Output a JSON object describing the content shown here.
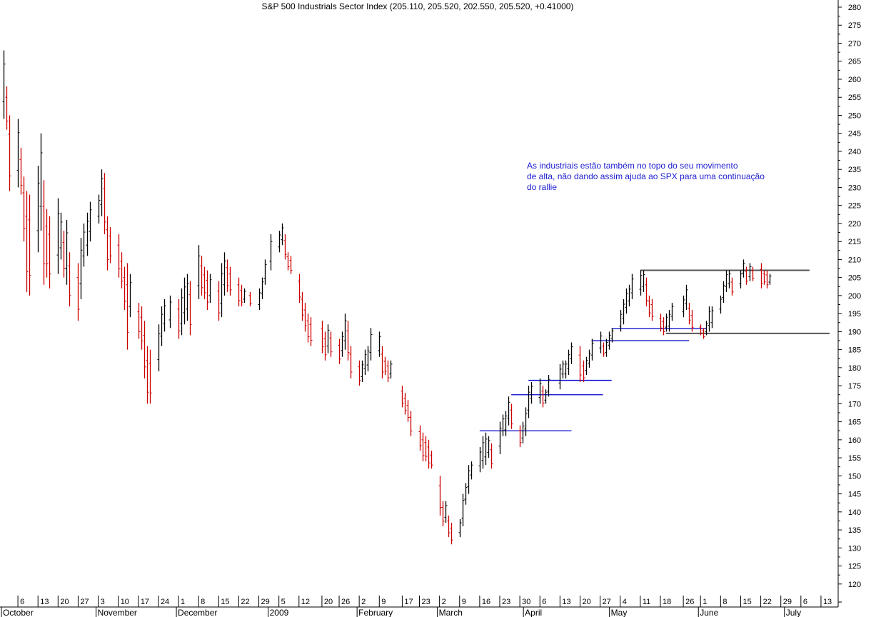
{
  "chart_data": {
    "type": "ohlc",
    "title": "S&P 500 Industrials Sector Index (205.110, 205.520, 202.550, 205.520, +0.41000)",
    "annotation": {
      "lines": [
        "As industriais estão também no topo do seu movimento",
        "de alta, não dando assim ajuda ao SPX para uma continuação",
        "do rallie"
      ],
      "color": "#1c1cd0"
    },
    "colors": {
      "up": "#000000",
      "down": "#cc0000",
      "trend_lines": "#0000cc",
      "range_lines": "#555555"
    },
    "y_axis": {
      "position": "right",
      "min": 115,
      "max": 280,
      "step": 5
    },
    "x_axis": {
      "start": "2008-10-03",
      "end": "2009-07-17",
      "week_labels": [
        {
          "d": "2008-10-06",
          "t": "6"
        },
        {
          "d": "2008-10-13",
          "t": "13"
        },
        {
          "d": "2008-10-20",
          "t": "20"
        },
        {
          "d": "2008-10-27",
          "t": "27"
        },
        {
          "d": "2008-11-03",
          "t": "3"
        },
        {
          "d": "2008-11-10",
          "t": "10"
        },
        {
          "d": "2008-11-17",
          "t": "17"
        },
        {
          "d": "2008-11-24",
          "t": "24"
        },
        {
          "d": "2008-12-01",
          "t": "1"
        },
        {
          "d": "2008-12-08",
          "t": "8"
        },
        {
          "d": "2008-12-15",
          "t": "15"
        },
        {
          "d": "2008-12-22",
          "t": "22"
        },
        {
          "d": "2008-12-29",
          "t": "29"
        },
        {
          "d": "2009-01-05",
          "t": "5"
        },
        {
          "d": "2009-01-12",
          "t": "12"
        },
        {
          "d": "2009-01-20",
          "t": "20"
        },
        {
          "d": "2009-01-26",
          "t": "26"
        },
        {
          "d": "2009-02-02",
          "t": "2"
        },
        {
          "d": "2009-02-09",
          "t": "9"
        },
        {
          "d": "2009-02-17",
          "t": "17"
        },
        {
          "d": "2009-02-23",
          "t": "23"
        },
        {
          "d": "2009-03-02",
          "t": "2"
        },
        {
          "d": "2009-03-09",
          "t": "9"
        },
        {
          "d": "2009-03-16",
          "t": "16"
        },
        {
          "d": "2009-03-23",
          "t": "23"
        },
        {
          "d": "2009-03-30",
          "t": "30"
        },
        {
          "d": "2009-04-06",
          "t": "6"
        },
        {
          "d": "2009-04-13",
          "t": "13"
        },
        {
          "d": "2009-04-20",
          "t": "20"
        },
        {
          "d": "2009-04-27",
          "t": "27"
        },
        {
          "d": "2009-05-04",
          "t": "4"
        },
        {
          "d": "2009-05-11",
          "t": "11"
        },
        {
          "d": "2009-05-18",
          "t": "18"
        },
        {
          "d": "2009-05-26",
          "t": "26"
        },
        {
          "d": "2009-06-01",
          "t": "1"
        },
        {
          "d": "2009-06-08",
          "t": "8"
        },
        {
          "d": "2009-06-15",
          "t": "15"
        },
        {
          "d": "2009-06-22",
          "t": "22"
        },
        {
          "d": "2009-06-29",
          "t": "29"
        },
        {
          "d": "2009-07-06",
          "t": "6"
        },
        {
          "d": "2009-07-13",
          "t": "13"
        }
      ],
      "month_labels": [
        {
          "d": "2008-10-01",
          "t": "October"
        },
        {
          "d": "2008-11-03",
          "t": "November"
        },
        {
          "d": "2008-12-01",
          "t": "December"
        },
        {
          "d": "2009-01-02",
          "t": "2009"
        },
        {
          "d": "2009-02-02",
          "t": "February"
        },
        {
          "d": "2009-03-02",
          "t": "March"
        },
        {
          "d": "2009-04-01",
          "t": "April"
        },
        {
          "d": "2009-05-01",
          "t": "May"
        },
        {
          "d": "2009-06-01",
          "t": "June"
        },
        {
          "d": "2009-07-01",
          "t": "July"
        }
      ]
    },
    "bars": [
      {
        "d": "2008-10-01",
        "h": 268,
        "l": 249
      },
      {
        "d": "2008-10-02",
        "h": 258,
        "l": 246
      },
      {
        "d": "2008-10-03",
        "h": 250,
        "l": 229
      },
      {
        "d": "2008-10-06",
        "h": 249,
        "l": 230
      },
      {
        "d": "2008-10-07",
        "h": 241,
        "l": 228
      },
      {
        "d": "2008-10-08",
        "h": 233,
        "l": 215
      },
      {
        "d": "2008-10-09",
        "h": 229,
        "l": 201
      },
      {
        "d": "2008-10-10",
        "h": 228,
        "l": 200
      },
      {
        "d": "2008-10-13",
        "h": 236,
        "l": 212
      },
      {
        "d": "2008-10-14",
        "h": 245,
        "l": 218
      },
      {
        "d": "2008-10-15",
        "h": 232,
        "l": 203
      },
      {
        "d": "2008-10-16",
        "h": 224,
        "l": 205
      },
      {
        "d": "2008-10-17",
        "h": 222,
        "l": 202
      },
      {
        "d": "2008-10-20",
        "h": 227,
        "l": 206
      },
      {
        "d": "2008-10-21",
        "h": 223,
        "l": 210
      },
      {
        "d": "2008-10-22",
        "h": 218,
        "l": 205
      },
      {
        "d": "2008-10-23",
        "h": 221,
        "l": 203
      },
      {
        "d": "2008-10-24",
        "h": 212,
        "l": 197
      },
      {
        "d": "2008-10-27",
        "h": 209,
        "l": 193
      },
      {
        "d": "2008-10-28",
        "h": 216,
        "l": 199
      },
      {
        "d": "2008-10-29",
        "h": 220,
        "l": 208
      },
      {
        "d": "2008-10-30",
        "h": 223,
        "l": 211
      },
      {
        "d": "2008-10-31",
        "h": 226,
        "l": 215
      },
      {
        "d": "2008-11-03",
        "h": 228,
        "l": 220
      },
      {
        "d": "2008-11-04",
        "h": 235,
        "l": 222
      },
      {
        "d": "2008-11-05",
        "h": 234,
        "l": 217
      },
      {
        "d": "2008-11-06",
        "h": 222,
        "l": 207
      },
      {
        "d": "2008-11-07",
        "h": 219,
        "l": 209
      },
      {
        "d": "2008-11-10",
        "h": 217,
        "l": 205
      },
      {
        "d": "2008-11-11",
        "h": 212,
        "l": 202
      },
      {
        "d": "2008-11-12",
        "h": 208,
        "l": 196
      },
      {
        "d": "2008-11-13",
        "h": 209,
        "l": 185
      },
      {
        "d": "2008-11-14",
        "h": 206,
        "l": 194
      },
      {
        "d": "2008-11-17",
        "h": 198,
        "l": 188
      },
      {
        "d": "2008-11-18",
        "h": 197,
        "l": 185
      },
      {
        "d": "2008-11-19",
        "h": 193,
        "l": 177
      },
      {
        "d": "2008-11-20",
        "h": 186,
        "l": 170
      },
      {
        "d": "2008-11-21",
        "h": 185,
        "l": 170
      },
      {
        "d": "2008-11-24",
        "h": 192,
        "l": 179
      },
      {
        "d": "2008-11-25",
        "h": 197,
        "l": 186
      },
      {
        "d": "2008-11-26",
        "h": 199,
        "l": 190
      },
      {
        "d": "2008-11-28",
        "h": 200,
        "l": 191
      },
      {
        "d": "2008-12-01",
        "h": 199,
        "l": 188
      },
      {
        "d": "2008-12-02",
        "h": 202,
        "l": 189
      },
      {
        "d": "2008-12-03",
        "h": 205,
        "l": 192
      },
      {
        "d": "2008-12-04",
        "h": 206,
        "l": 193
      },
      {
        "d": "2008-12-05",
        "h": 204,
        "l": 189
      },
      {
        "d": "2008-12-08",
        "h": 214,
        "l": 199
      },
      {
        "d": "2008-12-09",
        "h": 211,
        "l": 200
      },
      {
        "d": "2008-12-10",
        "h": 208,
        "l": 199
      },
      {
        "d": "2008-12-11",
        "h": 207,
        "l": 196
      },
      {
        "d": "2008-12-12",
        "h": 206,
        "l": 198
      },
      {
        "d": "2008-12-15",
        "h": 204,
        "l": 193
      },
      {
        "d": "2008-12-16",
        "h": 209,
        "l": 194
      },
      {
        "d": "2008-12-17",
        "h": 212,
        "l": 200
      },
      {
        "d": "2008-12-18",
        "h": 210,
        "l": 201
      },
      {
        "d": "2008-12-19",
        "h": 208,
        "l": 200
      },
      {
        "d": "2008-12-22",
        "h": 205,
        "l": 197
      },
      {
        "d": "2008-12-23",
        "h": 203,
        "l": 197
      },
      {
        "d": "2008-12-24",
        "h": 202,
        "l": 198
      },
      {
        "d": "2008-12-26",
        "h": 201,
        "l": 197
      },
      {
        "d": "2008-12-29",
        "h": 202,
        "l": 196
      },
      {
        "d": "2008-12-30",
        "h": 205,
        "l": 199
      },
      {
        "d": "2008-12-31",
        "h": 210,
        "l": 203
      },
      {
        "d": "2009-01-02",
        "h": 217,
        "l": 207
      },
      {
        "d": "2009-01-05",
        "h": 218,
        "l": 212
      },
      {
        "d": "2009-01-06",
        "h": 220,
        "l": 214
      },
      {
        "d": "2009-01-07",
        "h": 217,
        "l": 210
      },
      {
        "d": "2009-01-08",
        "h": 212,
        "l": 207
      },
      {
        "d": "2009-01-09",
        "h": 211,
        "l": 206
      },
      {
        "d": "2009-01-12",
        "h": 206,
        "l": 198
      },
      {
        "d": "2009-01-13",
        "h": 201,
        "l": 193
      },
      {
        "d": "2009-01-14",
        "h": 198,
        "l": 190
      },
      {
        "d": "2009-01-15",
        "h": 195,
        "l": 187
      },
      {
        "d": "2009-01-16",
        "h": 194,
        "l": 186
      },
      {
        "d": "2009-01-20",
        "h": 193,
        "l": 184
      },
      {
        "d": "2009-01-21",
        "h": 190,
        "l": 182
      },
      {
        "d": "2009-01-22",
        "h": 192,
        "l": 184
      },
      {
        "d": "2009-01-23",
        "h": 190,
        "l": 183
      },
      {
        "d": "2009-01-26",
        "h": 188,
        "l": 181
      },
      {
        "d": "2009-01-27",
        "h": 190,
        "l": 183
      },
      {
        "d": "2009-01-28",
        "h": 195,
        "l": 185
      },
      {
        "d": "2009-01-29",
        "h": 193,
        "l": 182
      },
      {
        "d": "2009-01-30",
        "h": 186,
        "l": 177
      },
      {
        "d": "2009-02-02",
        "h": 182,
        "l": 175
      },
      {
        "d": "2009-02-03",
        "h": 182,
        "l": 176
      },
      {
        "d": "2009-02-04",
        "h": 185,
        "l": 178
      },
      {
        "d": "2009-02-05",
        "h": 186,
        "l": 179
      },
      {
        "d": "2009-02-06",
        "h": 191,
        "l": 182
      },
      {
        "d": "2009-02-09",
        "h": 190,
        "l": 183
      },
      {
        "d": "2009-02-10",
        "h": 186,
        "l": 177
      },
      {
        "d": "2009-02-11",
        "h": 183,
        "l": 178
      },
      {
        "d": "2009-02-12",
        "h": 182,
        "l": 176
      },
      {
        "d": "2009-02-13",
        "h": 182,
        "l": 177
      },
      {
        "d": "2009-02-17",
        "h": 175,
        "l": 169
      },
      {
        "d": "2009-02-18",
        "h": 173,
        "l": 167
      },
      {
        "d": "2009-02-19",
        "h": 171,
        "l": 165
      },
      {
        "d": "2009-02-20",
        "h": 168,
        "l": 161
      },
      {
        "d": "2009-02-23",
        "h": 164,
        "l": 157
      },
      {
        "d": "2009-02-24",
        "h": 162,
        "l": 154
      },
      {
        "d": "2009-02-25",
        "h": 161,
        "l": 154
      },
      {
        "d": "2009-02-26",
        "h": 160,
        "l": 152
      },
      {
        "d": "2009-02-27",
        "h": 157,
        "l": 152
      },
      {
        "d": "2009-03-02",
        "h": 150,
        "l": 139
      },
      {
        "d": "2009-03-03",
        "h": 143,
        "l": 136
      },
      {
        "d": "2009-03-04",
        "h": 143,
        "l": 137
      },
      {
        "d": "2009-03-05",
        "h": 139,
        "l": 133
      },
      {
        "d": "2009-03-06",
        "h": 137,
        "l": 131
      },
      {
        "d": "2009-03-09",
        "h": 138,
        "l": 133
      },
      {
        "d": "2009-03-10",
        "h": 145,
        "l": 136
      },
      {
        "d": "2009-03-11",
        "h": 148,
        "l": 142
      },
      {
        "d": "2009-03-12",
        "h": 153,
        "l": 145
      },
      {
        "d": "2009-03-13",
        "h": 154,
        "l": 149
      },
      {
        "d": "2009-03-16",
        "h": 158,
        "l": 151
      },
      {
        "d": "2009-03-17",
        "h": 161,
        "l": 152
      },
      {
        "d": "2009-03-18",
        "h": 162,
        "l": 153
      },
      {
        "d": "2009-03-19",
        "h": 161,
        "l": 155
      },
      {
        "d": "2009-03-20",
        "h": 159,
        "l": 152
      },
      {
        "d": "2009-03-23",
        "h": 165,
        "l": 156
      },
      {
        "d": "2009-03-24",
        "h": 167,
        "l": 161
      },
      {
        "d": "2009-03-25",
        "h": 168,
        "l": 161
      },
      {
        "d": "2009-03-26",
        "h": 172,
        "l": 164
      },
      {
        "d": "2009-03-27",
        "h": 170,
        "l": 163
      },
      {
        "d": "2009-03-30",
        "h": 164,
        "l": 158
      },
      {
        "d": "2009-03-31",
        "h": 165,
        "l": 159
      },
      {
        "d": "2009-04-01",
        "h": 169,
        "l": 161
      },
      {
        "d": "2009-04-02",
        "h": 175,
        "l": 166
      },
      {
        "d": "2009-04-03",
        "h": 176,
        "l": 170
      },
      {
        "d": "2009-04-06",
        "h": 177,
        "l": 170
      },
      {
        "d": "2009-04-07",
        "h": 175,
        "l": 169
      },
      {
        "d": "2009-04-08",
        "h": 174,
        "l": 170
      },
      {
        "d": "2009-04-09",
        "h": 178,
        "l": 172
      },
      {
        "d": "2009-04-13",
        "h": 181,
        "l": 174
      },
      {
        "d": "2009-04-14",
        "h": 182,
        "l": 177
      },
      {
        "d": "2009-04-15",
        "h": 182,
        "l": 177
      },
      {
        "d": "2009-04-16",
        "h": 185,
        "l": 178
      },
      {
        "d": "2009-04-17",
        "h": 187,
        "l": 181
      },
      {
        "d": "2009-04-20",
        "h": 186,
        "l": 176
      },
      {
        "d": "2009-04-21",
        "h": 182,
        "l": 176
      },
      {
        "d": "2009-04-22",
        "h": 183,
        "l": 178
      },
      {
        "d": "2009-04-23",
        "h": 185,
        "l": 180
      },
      {
        "d": "2009-04-24",
        "h": 188,
        "l": 182
      },
      {
        "d": "2009-04-27",
        "h": 190,
        "l": 184
      },
      {
        "d": "2009-04-28",
        "h": 187,
        "l": 183
      },
      {
        "d": "2009-04-29",
        "h": 188,
        "l": 183
      },
      {
        "d": "2009-04-30",
        "h": 190,
        "l": 185
      },
      {
        "d": "2009-05-01",
        "h": 191,
        "l": 187
      },
      {
        "d": "2009-05-04",
        "h": 196,
        "l": 190
      },
      {
        "d": "2009-05-05",
        "h": 199,
        "l": 192
      },
      {
        "d": "2009-05-06",
        "h": 202,
        "l": 195
      },
      {
        "d": "2009-05-07",
        "h": 203,
        "l": 197
      },
      {
        "d": "2009-05-08",
        "h": 206,
        "l": 199
      },
      {
        "d": "2009-05-11",
        "h": 207,
        "l": 200
      },
      {
        "d": "2009-05-12",
        "h": 207,
        "l": 201
      },
      {
        "d": "2009-05-13",
        "h": 205,
        "l": 197
      },
      {
        "d": "2009-05-14",
        "h": 200,
        "l": 194
      },
      {
        "d": "2009-05-15",
        "h": 199,
        "l": 193
      },
      {
        "d": "2009-05-18",
        "h": 195,
        "l": 190
      },
      {
        "d": "2009-05-19",
        "h": 194,
        "l": 189
      },
      {
        "d": "2009-05-20",
        "h": 195,
        "l": 190
      },
      {
        "d": "2009-05-21",
        "h": 196,
        "l": 190
      },
      {
        "d": "2009-05-22",
        "h": 198,
        "l": 193
      },
      {
        "d": "2009-05-26",
        "h": 200,
        "l": 194
      },
      {
        "d": "2009-05-27",
        "h": 203,
        "l": 196
      },
      {
        "d": "2009-05-28",
        "h": 198,
        "l": 192
      },
      {
        "d": "2009-05-29",
        "h": 196,
        "l": 190
      },
      {
        "d": "2009-06-01",
        "h": 192,
        "l": 189
      },
      {
        "d": "2009-06-02",
        "h": 191,
        "l": 188
      },
      {
        "d": "2009-06-03",
        "h": 193,
        "l": 189
      },
      {
        "d": "2009-06-04",
        "h": 197,
        "l": 190
      },
      {
        "d": "2009-06-05",
        "h": 197,
        "l": 191
      },
      {
        "d": "2009-06-08",
        "h": 200,
        "l": 195
      },
      {
        "d": "2009-06-09",
        "h": 204,
        "l": 198
      },
      {
        "d": "2009-06-10",
        "h": 207,
        "l": 201
      },
      {
        "d": "2009-06-11",
        "h": 207,
        "l": 202
      },
      {
        "d": "2009-06-12",
        "h": 205,
        "l": 200
      },
      {
        "d": "2009-06-15",
        "h": 207,
        "l": 202
      },
      {
        "d": "2009-06-16",
        "h": 210,
        "l": 205
      },
      {
        "d": "2009-06-17",
        "h": 208,
        "l": 203
      },
      {
        "d": "2009-06-18",
        "h": 209,
        "l": 204
      },
      {
        "d": "2009-06-19",
        "h": 208,
        "l": 204
      },
      {
        "d": "2009-06-22",
        "h": 209,
        "l": 202
      },
      {
        "d": "2009-06-23",
        "h": 207,
        "l": 203
      },
      {
        "d": "2009-06-24",
        "h": 207,
        "l": 202
      },
      {
        "d": "2009-06-25",
        "h": 206,
        "l": 203
      }
    ],
    "lines": [
      {
        "from": "2009-03-16",
        "to": "2009-04-17",
        "y": 162.5,
        "color": "#0000cc"
      },
      {
        "from": "2009-03-27",
        "to": "2009-04-28",
        "y": 172.5,
        "color": "#0000cc"
      },
      {
        "from": "2009-04-02",
        "to": "2009-05-01",
        "y": 176.5,
        "color": "#0000cc"
      },
      {
        "from": "2009-04-24",
        "to": "2009-05-28",
        "y": 187.5,
        "color": "#0000cc"
      },
      {
        "from": "2009-05-01",
        "to": "2009-06-03",
        "y": 190.8,
        "color": "#0000cc"
      },
      {
        "from": "2009-05-11",
        "to": "2009-07-09",
        "y": 207.0,
        "color": "#555555"
      },
      {
        "from": "2009-05-20",
        "to": "2009-07-16",
        "y": 189.5,
        "color": "#555555"
      }
    ]
  }
}
